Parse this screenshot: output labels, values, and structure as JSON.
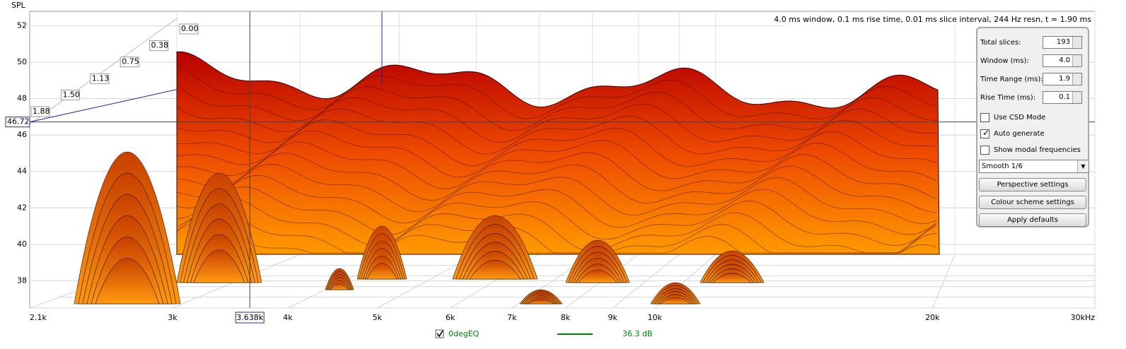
{
  "chart_data": {
    "type": "waterfall",
    "y_label": "SPL",
    "ylim": [
      36.5,
      52.8
    ],
    "yticks": [
      38,
      40,
      42,
      44,
      46,
      48,
      50,
      52
    ],
    "xscale": "log",
    "xlim": [
      2100,
      30000
    ],
    "xticks": [
      {
        "value": 2100,
        "label": "2.1k"
      },
      {
        "value": 3000,
        "label": "3k"
      },
      {
        "value": 4000,
        "label": "4k"
      },
      {
        "value": 5000,
        "label": "5k"
      },
      {
        "value": 6000,
        "label": "6k"
      },
      {
        "value": 7000,
        "label": "7k"
      },
      {
        "value": 8000,
        "label": "8k"
      },
      {
        "value": 9000,
        "label": "9k"
      },
      {
        "value": 10000,
        "label": "10k"
      },
      {
        "value": 20000,
        "label": "20k"
      },
      {
        "value": 30000,
        "label": "30kHz"
      }
    ],
    "tlim": [
      0,
      1.88
    ],
    "time_ticks": [
      {
        "value": 0,
        "label": "0.00"
      },
      {
        "value": 0.38,
        "label": "0.38"
      },
      {
        "value": 0.75,
        "label": "0.75"
      },
      {
        "value": 1.13,
        "label": "1.13"
      },
      {
        "value": 1.5,
        "label": "1.50"
      },
      {
        "value": 1.88,
        "label": "1.88"
      }
    ],
    "cursor_y": {
      "value": 46.72,
      "label": "46.72"
    },
    "cursor_x": {
      "value": 3638,
      "label": "3.638k"
    },
    "info": "4.0 ms window, 0.1 ms rise time, 0.01 ms slice interval, 244 Hz resn, t = 1.90 ms",
    "grid": true,
    "legend": {
      "checked": true,
      "name": "0degEQ",
      "color": "#008000",
      "reading": "36.3 dB"
    }
  },
  "controls": {
    "fields": [
      {
        "label": "Total slices:",
        "value": "193"
      },
      {
        "label": "Window (ms):",
        "value": "4.0"
      },
      {
        "label": "Time Range (ms):",
        "value": "1.9"
      },
      {
        "label": "Rise Time (ms):",
        "value": "0.1"
      }
    ],
    "checkboxes": [
      {
        "label": "Use CSD Mode",
        "checked": false
      },
      {
        "label": "Auto generate",
        "checked": true
      },
      {
        "label": "Show modal frequencies",
        "checked": false
      }
    ],
    "dropdown": "Smooth 1/6",
    "buttons": [
      "Perspective settings",
      "Colour scheme settings",
      "Apply defaults"
    ]
  }
}
